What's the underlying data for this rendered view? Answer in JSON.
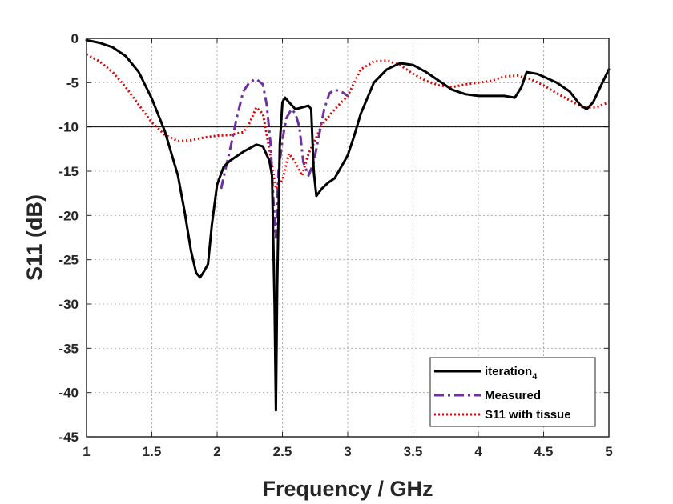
{
  "chart_data": {
    "type": "line",
    "title": "",
    "xlabel": "Frequency / GHz",
    "ylabel": "S11 (dB)",
    "xlim": [
      1,
      5
    ],
    "ylim": [
      -45,
      0
    ],
    "xticks": [
      "1",
      "1.5",
      "2",
      "2.5",
      "3",
      "3.5",
      "4",
      "4.5",
      "5"
    ],
    "yticks": [
      "0",
      "-5",
      "-10",
      "-15",
      "-20",
      "-25",
      "-30",
      "-35",
      "-40",
      "-45"
    ],
    "grid": true,
    "legend_position": "bottom-right",
    "reference_line": {
      "y": -10
    },
    "series": [
      {
        "name": "iteration",
        "name_subscript": "4",
        "color": "#000000",
        "style": "solid",
        "points": [
          [
            1.0,
            -0.2
          ],
          [
            1.1,
            -0.5
          ],
          [
            1.2,
            -1.0
          ],
          [
            1.3,
            -2.0
          ],
          [
            1.4,
            -3.8
          ],
          [
            1.5,
            -6.8
          ],
          [
            1.6,
            -10.5
          ],
          [
            1.7,
            -15.5
          ],
          [
            1.75,
            -19.5
          ],
          [
            1.8,
            -24.0
          ],
          [
            1.84,
            -26.5
          ],
          [
            1.87,
            -27.0
          ],
          [
            1.9,
            -26.3
          ],
          [
            1.93,
            -25.5
          ],
          [
            1.96,
            -21.0
          ],
          [
            2.0,
            -16.5
          ],
          [
            2.05,
            -14.5
          ],
          [
            2.1,
            -13.8
          ],
          [
            2.2,
            -12.8
          ],
          [
            2.3,
            -12.0
          ],
          [
            2.35,
            -12.2
          ],
          [
            2.4,
            -13.8
          ],
          [
            2.42,
            -15.5
          ],
          [
            2.44,
            -30.0
          ],
          [
            2.45,
            -42.0
          ],
          [
            2.46,
            -28.0
          ],
          [
            2.48,
            -12.0
          ],
          [
            2.5,
            -7.2
          ],
          [
            2.52,
            -6.7
          ],
          [
            2.55,
            -7.2
          ],
          [
            2.6,
            -8.0
          ],
          [
            2.65,
            -7.8
          ],
          [
            2.7,
            -7.6
          ],
          [
            2.72,
            -8.0
          ],
          [
            2.74,
            -15.0
          ],
          [
            2.76,
            -17.8
          ],
          [
            2.8,
            -17.0
          ],
          [
            2.85,
            -16.3
          ],
          [
            2.9,
            -15.8
          ],
          [
            2.95,
            -14.5
          ],
          [
            3.0,
            -13.2
          ],
          [
            3.05,
            -11.0
          ],
          [
            3.1,
            -8.5
          ],
          [
            3.2,
            -5.0
          ],
          [
            3.3,
            -3.5
          ],
          [
            3.4,
            -2.8
          ],
          [
            3.5,
            -3.0
          ],
          [
            3.6,
            -3.8
          ],
          [
            3.7,
            -4.8
          ],
          [
            3.8,
            -5.8
          ],
          [
            3.9,
            -6.3
          ],
          [
            4.0,
            -6.5
          ],
          [
            4.1,
            -6.5
          ],
          [
            4.2,
            -6.5
          ],
          [
            4.28,
            -6.7
          ],
          [
            4.33,
            -5.5
          ],
          [
            4.37,
            -3.8
          ],
          [
            4.45,
            -4.0
          ],
          [
            4.6,
            -5.0
          ],
          [
            4.7,
            -6.0
          ],
          [
            4.78,
            -7.5
          ],
          [
            4.83,
            -8.0
          ],
          [
            4.88,
            -7.2
          ],
          [
            4.95,
            -5.0
          ],
          [
            5.0,
            -3.5
          ]
        ]
      },
      {
        "name": "Measured",
        "color": "#7030A0",
        "style": "dashdot",
        "points": [
          [
            2.03,
            -17.0
          ],
          [
            2.06,
            -15.0
          ],
          [
            2.1,
            -12.5
          ],
          [
            2.15,
            -9.0
          ],
          [
            2.2,
            -6.0
          ],
          [
            2.25,
            -4.9
          ],
          [
            2.3,
            -4.6
          ],
          [
            2.35,
            -5.2
          ],
          [
            2.38,
            -7.5
          ],
          [
            2.41,
            -12.0
          ],
          [
            2.43,
            -18.0
          ],
          [
            2.45,
            -22.5
          ],
          [
            2.47,
            -15.0
          ],
          [
            2.5,
            -11.5
          ],
          [
            2.53,
            -9.0
          ],
          [
            2.57,
            -8.0
          ],
          [
            2.6,
            -8.5
          ],
          [
            2.63,
            -10.0
          ],
          [
            2.66,
            -14.0
          ],
          [
            2.7,
            -15.5
          ],
          [
            2.74,
            -14.0
          ],
          [
            2.78,
            -11.0
          ],
          [
            2.82,
            -8.0
          ],
          [
            2.86,
            -6.2
          ],
          [
            2.9,
            -5.8
          ],
          [
            2.95,
            -6.0
          ],
          [
            3.0,
            -6.5
          ]
        ]
      },
      {
        "name": "S11 with tissue",
        "color": "#E00000",
        "style": "dotted",
        "points": [
          [
            1.0,
            -1.8
          ],
          [
            1.1,
            -2.6
          ],
          [
            1.2,
            -3.8
          ],
          [
            1.3,
            -5.5
          ],
          [
            1.4,
            -7.5
          ],
          [
            1.5,
            -9.5
          ],
          [
            1.6,
            -10.9
          ],
          [
            1.7,
            -11.6
          ],
          [
            1.8,
            -11.5
          ],
          [
            1.9,
            -11.2
          ],
          [
            2.0,
            -11.0
          ],
          [
            2.1,
            -10.9
          ],
          [
            2.2,
            -10.6
          ],
          [
            2.25,
            -9.5
          ],
          [
            2.3,
            -7.8
          ],
          [
            2.35,
            -8.5
          ],
          [
            2.4,
            -12.5
          ],
          [
            2.45,
            -17.0
          ],
          [
            2.5,
            -16.0
          ],
          [
            2.55,
            -13.0
          ],
          [
            2.6,
            -14.0
          ],
          [
            2.65,
            -15.5
          ],
          [
            2.7,
            -13.0
          ],
          [
            2.75,
            -11.5
          ],
          [
            2.8,
            -9.8
          ],
          [
            2.9,
            -8.0
          ],
          [
            3.0,
            -6.5
          ],
          [
            3.1,
            -3.5
          ],
          [
            3.2,
            -2.6
          ],
          [
            3.3,
            -2.5
          ],
          [
            3.4,
            -3.0
          ],
          [
            3.5,
            -4.0
          ],
          [
            3.6,
            -4.8
          ],
          [
            3.7,
            -5.3
          ],
          [
            3.8,
            -5.5
          ],
          [
            3.9,
            -5.2
          ],
          [
            4.0,
            -5.0
          ],
          [
            4.1,
            -4.8
          ],
          [
            4.2,
            -4.3
          ],
          [
            4.3,
            -4.2
          ],
          [
            4.4,
            -4.6
          ],
          [
            4.5,
            -5.3
          ],
          [
            4.6,
            -6.2
          ],
          [
            4.7,
            -7.0
          ],
          [
            4.8,
            -7.8
          ],
          [
            4.9,
            -7.8
          ],
          [
            5.0,
            -7.2
          ]
        ]
      }
    ]
  }
}
